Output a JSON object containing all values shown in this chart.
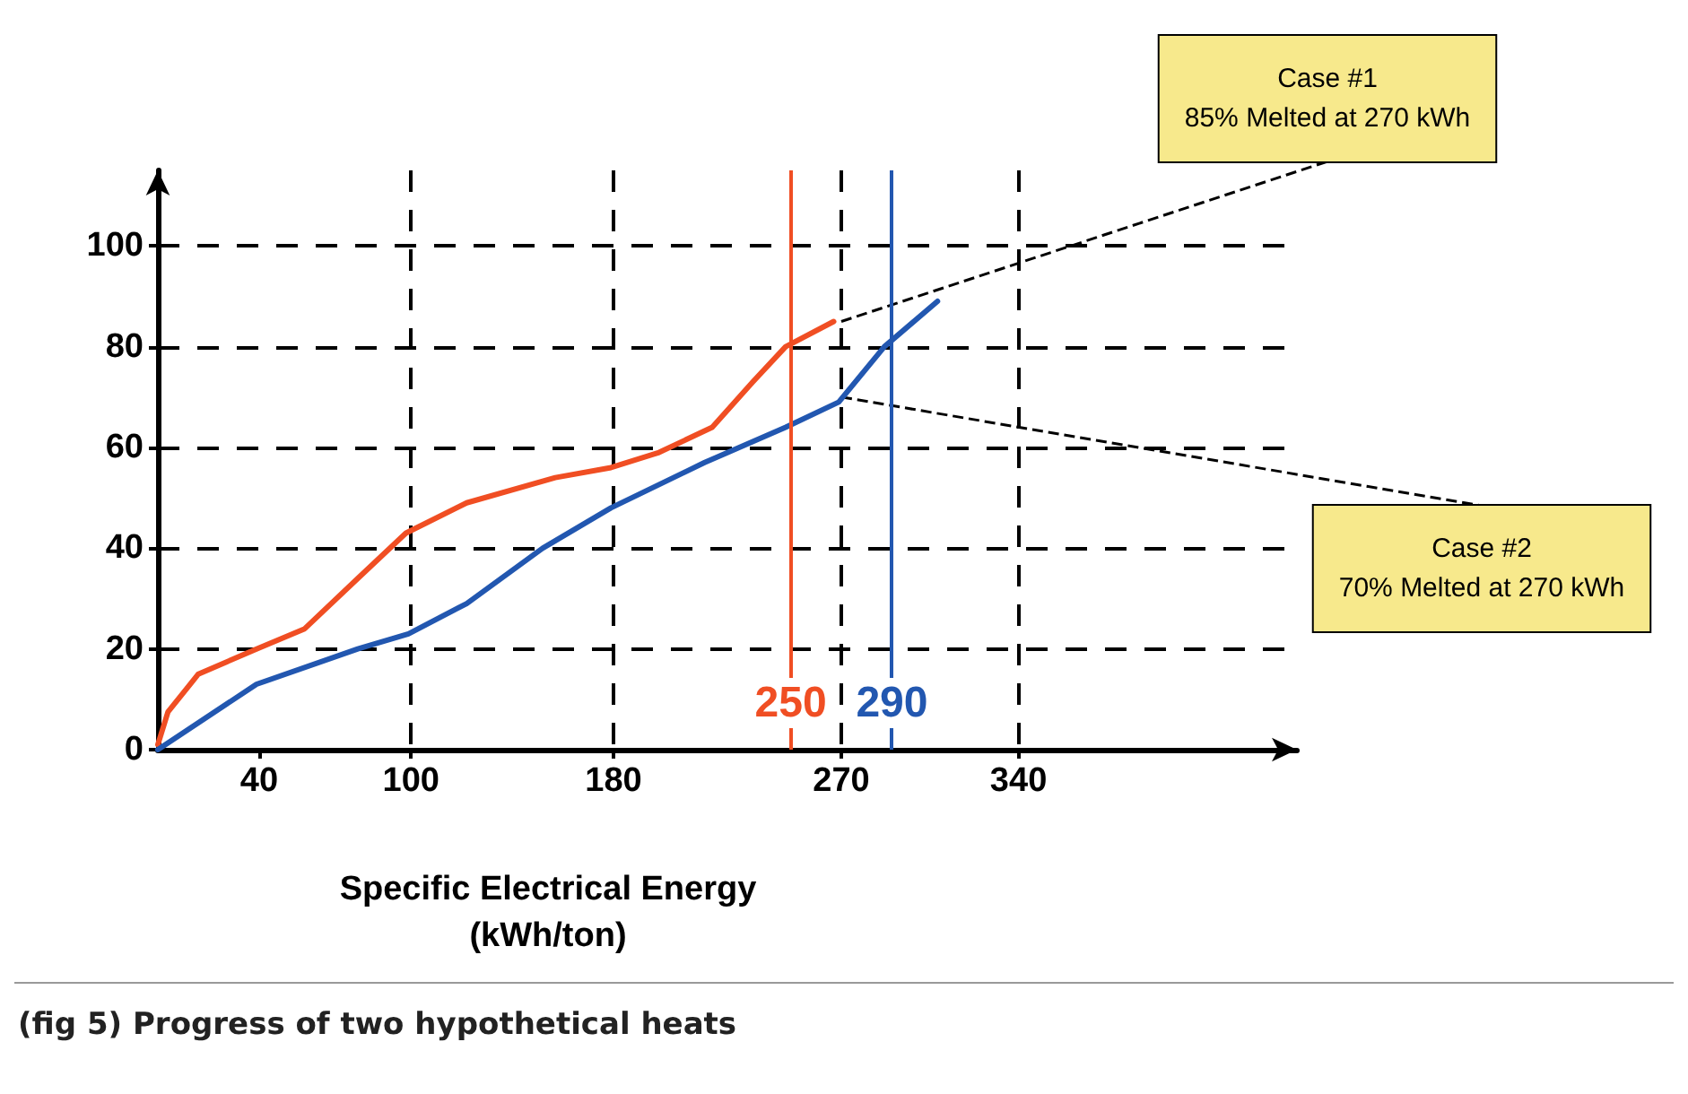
{
  "chart_data": {
    "type": "line",
    "xlabel": "Specific Electrical Energy\n(kWh/ton)",
    "xlim": [
      0,
      450
    ],
    "xticks": [
      40,
      100,
      180,
      270,
      340
    ],
    "ylim": [
      0,
      115
    ],
    "yticks": [
      0,
      20,
      40,
      60,
      80,
      100
    ],
    "grid": true,
    "marker": "none",
    "line_style": "solid",
    "series": [
      {
        "color": "#f04e23",
        "x": [
          0,
          4,
          16,
          39,
          58,
          79,
          98,
          122,
          157,
          179,
          198,
          219,
          235,
          248,
          267
        ],
        "values": [
          1,
          7.5,
          15,
          20,
          24,
          34,
          43,
          49,
          54,
          56,
          59,
          64,
          73,
          80,
          85
        ]
      },
      {
        "color": "#2257b0",
        "x": [
          0,
          39,
          79,
          99,
          122,
          152,
          179,
          216,
          248,
          269,
          287,
          308
        ],
        "values": [
          0,
          13,
          20,
          23,
          29,
          40,
          48,
          57,
          64,
          69,
          80,
          89
        ]
      }
    ],
    "ref_lines": [
      {
        "axis": "x",
        "value": 250,
        "label": "250",
        "color": "#f04e23",
        "line_style": "solid"
      },
      {
        "axis": "x",
        "value": 290,
        "label": "290",
        "color": "#2257b0",
        "line_style": "solid"
      }
    ],
    "annotations": [
      {
        "text": "Case #1\n85% Melted at 270 kWh",
        "x": 270,
        "y": 85
      },
      {
        "text": "Case #2\n70% Melted at 270 kWh",
        "x": 270,
        "y": 70
      },
      "(fig 5) Progress of two hypothetical heats"
    ]
  }
}
